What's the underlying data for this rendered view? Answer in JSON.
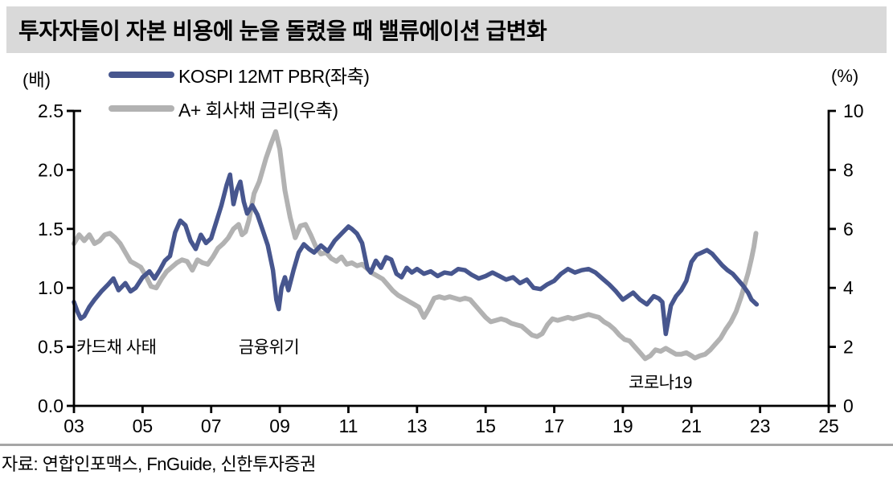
{
  "title": "투자자들이 자본 비용에 눈을 돌렸을 때 밸류에이션 급변화",
  "left_axis_unit": "(배)",
  "right_axis_unit": "(%)",
  "source": "자료: 연합인포맥스, FnGuide, 신한투자증권",
  "colors": {
    "pbr_line": "#47568e",
    "bond_line": "#b2b2b2",
    "title_bar_bg": "#d9d9d9",
    "divider": "#a6a6a6",
    "axis": "#000000",
    "text": "#000000"
  },
  "legend": [
    {
      "label": "KOSPI 12MT PBR(좌축)",
      "color": "#47568e"
    },
    {
      "label": "A+ 회사채 금리(우축)",
      "color": "#b2b2b2"
    }
  ],
  "chart_data": {
    "type": "line",
    "title": "투자자들이 자본 비용에 눈을 돌렸을 때 밸류에이션 급변화",
    "legend_position": "top-left",
    "grid": false,
    "x_axis": {
      "range": [
        2003,
        2025
      ],
      "ticks": [
        2003,
        2005,
        2007,
        2009,
        2011,
        2013,
        2015,
        2017,
        2019,
        2021,
        2023,
        2025
      ],
      "tick_labels": [
        "03",
        "05",
        "07",
        "09",
        "11",
        "13",
        "15",
        "17",
        "19",
        "21",
        "23",
        "25"
      ]
    },
    "left_axis": {
      "unit": "(배)",
      "range": [
        0,
        2.5
      ],
      "ticks": [
        0,
        0.5,
        1.0,
        1.5,
        2.0,
        2.5
      ],
      "tick_labels": [
        "0.0",
        "0.5",
        "1.0",
        "1.5",
        "2.0",
        "2.5"
      ]
    },
    "right_axis": {
      "unit": "(%)",
      "range": [
        0,
        10
      ],
      "ticks": [
        0,
        2,
        4,
        6,
        8,
        10
      ],
      "tick_labels": [
        "0",
        "2",
        "4",
        "6",
        "8",
        "10"
      ]
    },
    "series": [
      {
        "name": "A+ 회사채 금리(우축)",
        "axis": "right",
        "color": "#b2b2b2",
        "width": 6,
        "x": [
          2003.0,
          2003.15,
          2003.3,
          2003.45,
          2003.6,
          2003.75,
          2003.9,
          2004.05,
          2004.2,
          2004.35,
          2004.5,
          2004.65,
          2004.8,
          2004.95,
          2005.1,
          2005.25,
          2005.4,
          2005.55,
          2005.7,
          2005.85,
          2006.0,
          2006.15,
          2006.3,
          2006.45,
          2006.6,
          2006.75,
          2006.9,
          2007.05,
          2007.2,
          2007.35,
          2007.5,
          2007.65,
          2007.8,
          2007.9,
          2008.0,
          2008.1,
          2008.25,
          2008.4,
          2008.5,
          2008.6,
          2008.75,
          2008.88,
          2009.0,
          2009.15,
          2009.3,
          2009.45,
          2009.6,
          2009.75,
          2009.9,
          2010.05,
          2010.2,
          2010.35,
          2010.5,
          2010.65,
          2010.8,
          2010.95,
          2011.1,
          2011.25,
          2011.4,
          2011.55,
          2011.7,
          2011.85,
          2012.0,
          2012.15,
          2012.3,
          2012.45,
          2012.6,
          2012.75,
          2012.9,
          2013.05,
          2013.2,
          2013.35,
          2013.5,
          2013.65,
          2013.8,
          2013.95,
          2014.1,
          2014.25,
          2014.4,
          2014.55,
          2014.7,
          2014.85,
          2015.0,
          2015.15,
          2015.3,
          2015.45,
          2015.6,
          2015.75,
          2015.9,
          2016.05,
          2016.2,
          2016.35,
          2016.5,
          2016.65,
          2016.8,
          2016.95,
          2017.1,
          2017.25,
          2017.4,
          2017.55,
          2017.7,
          2017.85,
          2018.0,
          2018.15,
          2018.3,
          2018.45,
          2018.6,
          2018.75,
          2018.9,
          2019.05,
          2019.2,
          2019.35,
          2019.5,
          2019.65,
          2019.8,
          2019.95,
          2020.1,
          2020.25,
          2020.4,
          2020.55,
          2020.7,
          2020.85,
          2021.0,
          2021.1,
          2021.25,
          2021.4,
          2021.55,
          2021.7,
          2021.85,
          2022.0,
          2022.15,
          2022.3,
          2022.45,
          2022.55,
          2022.65,
          2022.75,
          2022.82,
          2022.88
        ],
        "values": [
          5.5,
          5.8,
          5.6,
          5.8,
          5.5,
          5.6,
          5.8,
          5.85,
          5.7,
          5.5,
          5.2,
          4.9,
          4.8,
          4.7,
          4.4,
          4.05,
          4.0,
          4.3,
          4.55,
          4.7,
          4.85,
          4.95,
          4.9,
          4.6,
          4.95,
          4.85,
          4.8,
          5.05,
          5.35,
          5.5,
          5.7,
          6.0,
          6.15,
          5.8,
          5.9,
          6.3,
          7.2,
          7.6,
          8.0,
          8.4,
          8.9,
          9.3,
          8.7,
          7.3,
          6.4,
          5.7,
          6.1,
          6.15,
          5.8,
          5.4,
          5.15,
          5.2,
          5.0,
          4.9,
          5.05,
          4.8,
          4.85,
          4.75,
          4.8,
          4.65,
          4.5,
          4.4,
          4.3,
          4.1,
          3.9,
          3.75,
          3.65,
          3.55,
          3.45,
          3.35,
          3.0,
          3.3,
          3.65,
          3.7,
          3.65,
          3.7,
          3.65,
          3.6,
          3.65,
          3.6,
          3.4,
          3.2,
          3.0,
          2.85,
          2.9,
          2.95,
          2.9,
          2.8,
          2.75,
          2.7,
          2.55,
          2.4,
          2.35,
          2.45,
          2.75,
          2.95,
          2.9,
          2.95,
          3.0,
          2.95,
          3.0,
          3.05,
          3.1,
          3.05,
          3.0,
          2.85,
          2.75,
          2.6,
          2.4,
          2.25,
          2.2,
          2.0,
          1.8,
          1.6,
          1.7,
          1.9,
          1.85,
          1.95,
          1.85,
          1.75,
          1.75,
          1.8,
          1.7,
          1.62,
          1.7,
          1.75,
          1.9,
          2.1,
          2.3,
          2.6,
          2.85,
          3.2,
          3.7,
          4.1,
          4.5,
          5.0,
          5.4,
          5.85
        ]
      },
      {
        "name": "KOSPI 12MT PBR(좌축)",
        "axis": "left",
        "color": "#47568e",
        "width": 5.5,
        "x": [
          2003.0,
          2003.1,
          2003.2,
          2003.3,
          2003.45,
          2003.6,
          2003.8,
          2004.0,
          2004.15,
          2004.3,
          2004.5,
          2004.65,
          2004.8,
          2005.0,
          2005.2,
          2005.35,
          2005.5,
          2005.65,
          2005.8,
          2005.95,
          2006.1,
          2006.25,
          2006.4,
          2006.55,
          2006.7,
          2006.85,
          2007.0,
          2007.15,
          2007.3,
          2007.45,
          2007.55,
          2007.65,
          2007.75,
          2007.85,
          2007.95,
          2008.05,
          2008.2,
          2008.35,
          2008.5,
          2008.65,
          2008.8,
          2008.9,
          2008.97,
          2009.05,
          2009.15,
          2009.25,
          2009.4,
          2009.55,
          2009.7,
          2009.85,
          2010.0,
          2010.2,
          2010.4,
          2010.6,
          2010.8,
          2011.0,
          2011.1,
          2011.25,
          2011.4,
          2011.55,
          2011.65,
          2011.8,
          2011.95,
          2012.1,
          2012.25,
          2012.4,
          2012.55,
          2012.7,
          2012.85,
          2013.0,
          2013.2,
          2013.4,
          2013.6,
          2013.8,
          2014.0,
          2014.2,
          2014.4,
          2014.6,
          2014.8,
          2015.0,
          2015.2,
          2015.4,
          2015.6,
          2015.8,
          2016.0,
          2016.2,
          2016.4,
          2016.6,
          2016.8,
          2017.0,
          2017.2,
          2017.4,
          2017.6,
          2017.8,
          2018.0,
          2018.2,
          2018.4,
          2018.6,
          2018.8,
          2019.0,
          2019.15,
          2019.3,
          2019.5,
          2019.7,
          2019.9,
          2020.05,
          2020.15,
          2020.25,
          2020.4,
          2020.55,
          2020.7,
          2020.85,
          2021.0,
          2021.15,
          2021.3,
          2021.45,
          2021.6,
          2021.75,
          2021.9,
          2022.05,
          2022.2,
          2022.35,
          2022.5,
          2022.65,
          2022.75,
          2022.9
        ],
        "values": [
          0.88,
          0.8,
          0.74,
          0.76,
          0.84,
          0.9,
          0.97,
          1.03,
          1.08,
          0.98,
          1.04,
          0.97,
          1.0,
          1.09,
          1.14,
          1.08,
          1.15,
          1.23,
          1.27,
          1.47,
          1.57,
          1.53,
          1.4,
          1.33,
          1.45,
          1.38,
          1.42,
          1.56,
          1.7,
          1.87,
          1.96,
          1.71,
          1.83,
          1.9,
          1.73,
          1.63,
          1.7,
          1.62,
          1.49,
          1.36,
          1.15,
          0.9,
          0.82,
          1.0,
          1.09,
          0.98,
          1.15,
          1.3,
          1.37,
          1.33,
          1.3,
          1.36,
          1.31,
          1.4,
          1.46,
          1.52,
          1.5,
          1.46,
          1.38,
          1.17,
          1.13,
          1.23,
          1.17,
          1.26,
          1.24,
          1.12,
          1.09,
          1.17,
          1.13,
          1.16,
          1.12,
          1.14,
          1.1,
          1.13,
          1.12,
          1.16,
          1.15,
          1.11,
          1.08,
          1.1,
          1.13,
          1.1,
          1.07,
          1.09,
          1.04,
          1.07,
          1.0,
          0.99,
          1.03,
          1.06,
          1.12,
          1.16,
          1.13,
          1.15,
          1.16,
          1.13,
          1.08,
          1.03,
          0.97,
          0.9,
          0.93,
          0.96,
          0.9,
          0.86,
          0.93,
          0.91,
          0.88,
          0.61,
          0.85,
          0.93,
          0.98,
          1.06,
          1.22,
          1.28,
          1.3,
          1.32,
          1.29,
          1.24,
          1.19,
          1.15,
          1.12,
          1.07,
          1.02,
          0.96,
          0.9,
          0.86
        ]
      }
    ],
    "annotations": [
      {
        "text": "카드채 사태",
        "year": 2003.07,
        "value": 0.45
      },
      {
        "text": "금융위기",
        "year": 2007.8,
        "value": 0.45
      },
      {
        "text": "코로나19",
        "year": 2019.17,
        "value": 0.15
      }
    ]
  }
}
